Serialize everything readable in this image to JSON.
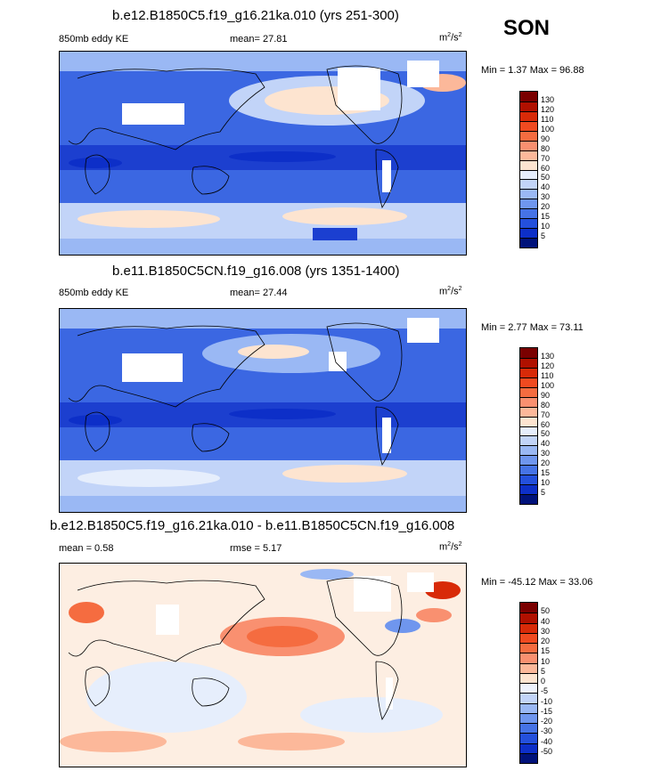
{
  "season": "SON",
  "panels": [
    {
      "title": "b.e12.B1850C5.f19_g16.21ka.010 (yrs 251-300)",
      "left_label": "850mb eddy KE",
      "center_label": "mean=  27.81",
      "units": "m",
      "units_sup1": "2",
      "units_mid": "/s",
      "units_sup2": "2",
      "minmax": "Min =  1.37 Max =  96.88",
      "colorbar_labels": [
        "130",
        "120",
        "110",
        "100",
        "90",
        "80",
        "70",
        "60",
        "50",
        "40",
        "30",
        "20",
        "15",
        "10",
        "5"
      ],
      "colorbar_colors": [
        "#7a0000",
        "#b01000",
        "#d82a08",
        "#f04a20",
        "#f56c40",
        "#f99070",
        "#fcb89a",
        "#fde4d0",
        "#e6eefc",
        "#c2d4f8",
        "#9ab8f4",
        "#6f96ee",
        "#4673e6",
        "#2450dc",
        "#0d2fc8",
        "#00127a"
      ]
    },
    {
      "title": "b.e11.B1850C5CN.f19_g16.008 (yrs 1351-1400)",
      "left_label": "850mb eddy KE",
      "center_label": "mean=  27.44",
      "units": "m",
      "units_sup1": "2",
      "units_mid": "/s",
      "units_sup2": "2",
      "minmax": "Min =  2.77 Max =  73.11",
      "colorbar_labels": [
        "130",
        "120",
        "110",
        "100",
        "90",
        "80",
        "70",
        "60",
        "50",
        "40",
        "30",
        "20",
        "15",
        "10",
        "5"
      ],
      "colorbar_colors": [
        "#7a0000",
        "#b01000",
        "#d82a08",
        "#f04a20",
        "#f56c40",
        "#f99070",
        "#fcb89a",
        "#fde4d0",
        "#e6eefc",
        "#c2d4f8",
        "#9ab8f4",
        "#6f96ee",
        "#4673e6",
        "#2450dc",
        "#0d2fc8",
        "#00127a"
      ]
    },
    {
      "title": "b.e12.B1850C5.f19_g16.21ka.010 - b.e11.B1850C5CN.f19_g16.008",
      "left_label": "mean =   0.58",
      "center_label": "rmse =   5.17",
      "units": "m",
      "units_sup1": "2",
      "units_mid": "/s",
      "units_sup2": "2",
      "minmax": "Min = -45.12 Max =  33.06",
      "colorbar_labels": [
        "50",
        "40",
        "30",
        "20",
        "15",
        "10",
        "5",
        "0",
        "-5",
        "-10",
        "-15",
        "-20",
        "-30",
        "-40",
        "-50"
      ],
      "colorbar_colors": [
        "#7a0000",
        "#b01000",
        "#d82a08",
        "#f04a20",
        "#f56c40",
        "#f99070",
        "#fcb89a",
        "#fde4d0",
        "#eef3fd",
        "#c2d4f8",
        "#9ab8f4",
        "#6f96ee",
        "#4673e6",
        "#2450dc",
        "#0d2fc8",
        "#00127a"
      ]
    }
  ]
}
